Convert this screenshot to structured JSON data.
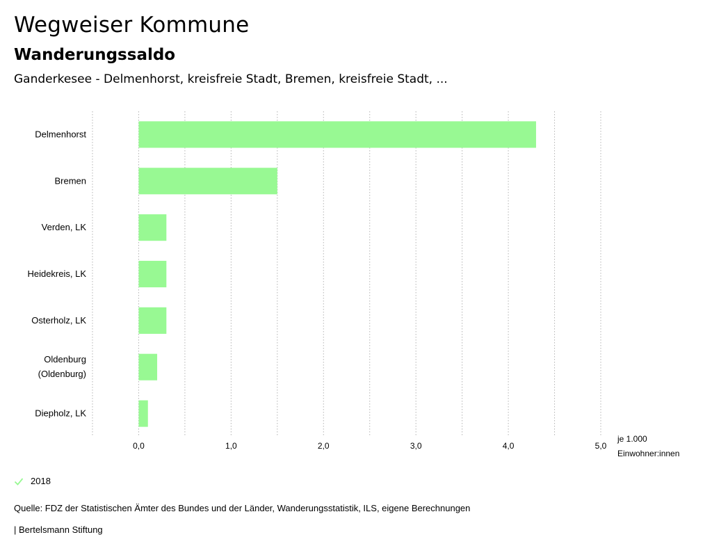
{
  "header": {
    "title": "Wegweiser Kommune",
    "subtitle": "Wanderungssaldo",
    "region": "Ganderkesee - Delmenhorst, kreisfreie Stadt, Bremen, kreisfreie Stadt, ..."
  },
  "chart_data": {
    "type": "bar",
    "orientation": "horizontal",
    "categories": [
      [
        "Delmenhorst"
      ],
      [
        "Bremen"
      ],
      [
        "Verden, LK"
      ],
      [
        "Heidekreis, LK"
      ],
      [
        "Osterholz, LK"
      ],
      [
        "Oldenburg",
        "(Oldenburg)"
      ],
      [
        "Diepholz, LK"
      ]
    ],
    "series": [
      {
        "name": "2018",
        "color": "#98f993",
        "values": [
          4.3,
          1.5,
          0.3,
          0.3,
          0.3,
          0.2,
          0.1
        ]
      }
    ],
    "xlim": [
      -0.5,
      5.0
    ],
    "ticks": [
      0,
      1,
      2,
      3,
      4,
      5
    ],
    "tick_labels": [
      "0,0",
      "1,0",
      "2,0",
      "3,0",
      "4,0",
      "5,0"
    ],
    "unit_label": [
      "je 1.000",
      "Einwohner:innen"
    ],
    "grid": "vertical-dotted"
  },
  "legend": {
    "label": "2018",
    "color": "#98f993"
  },
  "source": "Quelle: FDZ der Statistischen Ämter des Bundes und der Länder, Wanderungsstatistik, ILS, eigene Berechnungen",
  "footer": "| Bertelsmann Stiftung"
}
